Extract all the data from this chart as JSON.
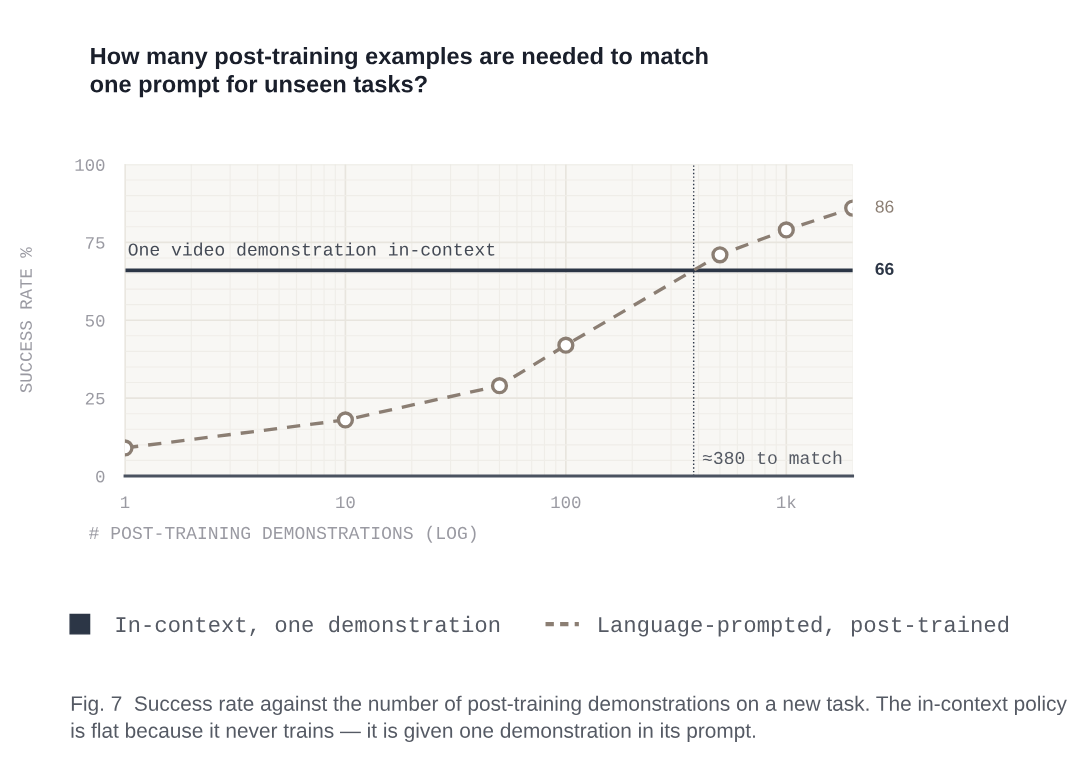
{
  "chart_data": {
    "type": "line",
    "title": "How many post-training examples are needed to match\none prompt for unseen tasks?",
    "xlabel": "# POST-TRAINING DEMONSTRATIONS (LOG)",
    "ylabel": "SUCCESS RATE %",
    "log": "x",
    "xlim": [
      1,
      2000
    ],
    "xticks": [
      1,
      10,
      100,
      {
        "value": 1000,
        "label": "1k"
      }
    ],
    "ylim": [
      0,
      100
    ],
    "yticks": [
      0,
      25,
      50,
      75,
      100
    ],
    "grid": true,
    "legend": "bottom",
    "series": [
      {
        "name": "In-context, one demonstration",
        "color": "#2c3646",
        "line_style": "solid",
        "marker": "none",
        "x": [
          1,
          2000
        ],
        "values": [
          66,
          66
        ],
        "value_labels": [
          null,
          "66"
        ]
      },
      {
        "name": "Language-prompted, post-trained",
        "color": "#8b7e73",
        "line_style": "dashed",
        "marker": "circle",
        "x": [
          1,
          10,
          50,
          100,
          500,
          1000,
          2000
        ],
        "values": [
          9,
          18,
          29,
          42,
          71,
          79,
          86
        ],
        "value_labels": [
          null,
          null,
          null,
          null,
          null,
          null,
          "86"
        ]
      }
    ],
    "ref_lines": [
      {
        "axis": "x",
        "value": 380,
        "label": "≈380 to match",
        "color": "#2c3646",
        "line_style": "dotted"
      }
    ],
    "annotations": [
      {
        "text": "One video demonstration in-context",
        "x": 1,
        "y": 66
      },
      "Fig. 7  Success rate against the number of post-training demonstrations on a new task. The in-context policy is flat because it never trains — it is given one demonstration in its prompt."
    ]
  }
}
